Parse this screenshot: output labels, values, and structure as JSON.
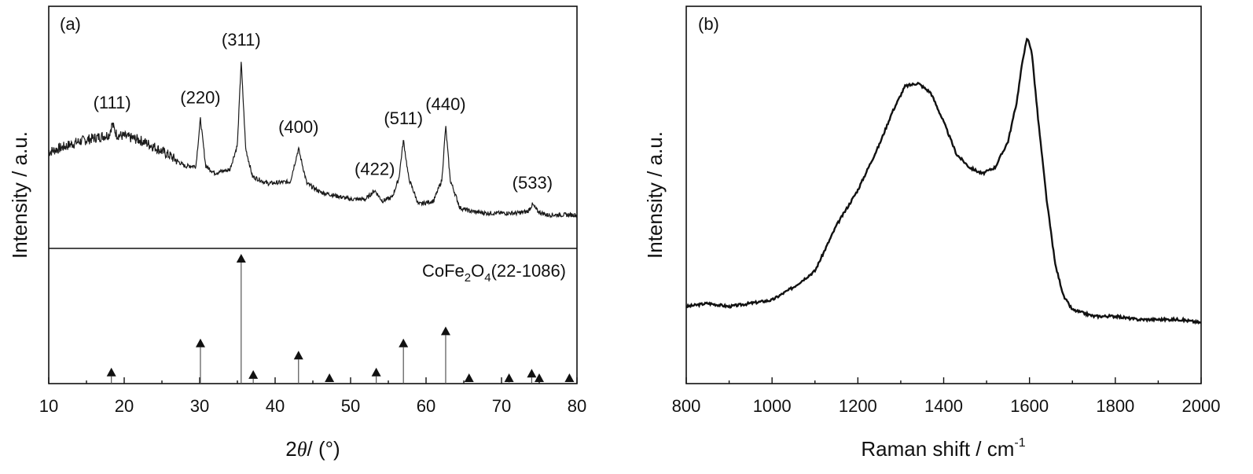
{
  "chart_data": [
    {
      "type": "line",
      "panel_label": "(a)",
      "xlabel_prefix": "2",
      "xlabel_symbol": "θ",
      "xlabel_suffix": "/ (°)",
      "ylabel": "Intensity / a.u.",
      "xlim": [
        10,
        80
      ],
      "xticks": [
        10,
        20,
        30,
        40,
        50,
        60,
        70,
        80
      ],
      "grid": false,
      "series": [
        {
          "x": [
            10,
            12,
            14,
            16,
            18,
            18.4,
            19,
            20,
            22,
            24,
            26,
            28,
            29.5,
            30.1,
            30.8,
            32,
            34,
            35.0,
            35.5,
            36.1,
            37,
            39,
            42,
            43.1,
            44.2,
            46,
            48,
            50,
            52,
            53.2,
            54.2,
            55.5,
            56.4,
            57.0,
            57.7,
            59,
            61,
            62.1,
            62.6,
            63.2,
            64.5,
            66,
            68,
            70,
            72,
            73.5,
            74.1,
            74.8,
            76,
            78,
            80
          ],
          "y": [
            0.48,
            0.51,
            0.54,
            0.56,
            0.58,
            0.64,
            0.58,
            0.57,
            0.55,
            0.51,
            0.46,
            0.4,
            0.4,
            0.67,
            0.4,
            0.36,
            0.38,
            0.52,
            1.0,
            0.5,
            0.34,
            0.3,
            0.31,
            0.5,
            0.3,
            0.25,
            0.23,
            0.21,
            0.21,
            0.26,
            0.2,
            0.22,
            0.33,
            0.55,
            0.33,
            0.18,
            0.2,
            0.32,
            0.63,
            0.32,
            0.16,
            0.14,
            0.13,
            0.13,
            0.13,
            0.14,
            0.18,
            0.14,
            0.12,
            0.12,
            0.12
          ]
        }
      ],
      "peak_labels": [
        {
          "text": "(111)",
          "x": 18.4
        },
        {
          "text": "(220)",
          "x": 30.1
        },
        {
          "text": "(311)",
          "x": 35.5
        },
        {
          "text": "(400)",
          "x": 43.1
        },
        {
          "text": "(422)",
          "x": 53.2
        },
        {
          "text": "(511)",
          "x": 57.0
        },
        {
          "text": "(440)",
          "x": 62.6
        },
        {
          "text": "(533)",
          "x": 74.1
        }
      ],
      "reference": {
        "label_main": "CoFe",
        "label_sub1": "2",
        "label_mid": "O",
        "label_sub2": "4",
        "label_tail": "(22-1086)",
        "peaks": [
          {
            "x": 18.3,
            "y": 0.06
          },
          {
            "x": 30.1,
            "y": 0.3
          },
          {
            "x": 35.5,
            "y": 1.0
          },
          {
            "x": 37.1,
            "y": 0.04
          },
          {
            "x": 43.1,
            "y": 0.2
          },
          {
            "x": 47.2,
            "y": 0.0
          },
          {
            "x": 53.4,
            "y": 0.06
          },
          {
            "x": 57.0,
            "y": 0.3
          },
          {
            "x": 62.6,
            "y": 0.4
          },
          {
            "x": 65.7,
            "y": 0.0
          },
          {
            "x": 71.0,
            "y": 0.01
          },
          {
            "x": 74.0,
            "y": 0.05
          },
          {
            "x": 75.0,
            "y": 0.0
          },
          {
            "x": 79.0,
            "y": 0.0
          }
        ]
      }
    },
    {
      "type": "line",
      "panel_label": "(b)",
      "xlabel": "Raman shift / cm",
      "xlabel_sup": "-1",
      "ylabel": "Intensity / a.u.",
      "xlim": [
        800,
        2000
      ],
      "xticks": [
        800,
        1000,
        1200,
        1400,
        1600,
        1800,
        2000
      ],
      "grid": false,
      "series": [
        {
          "x": [
            800,
            850,
            900,
            950,
            1000,
            1050,
            1100,
            1150,
            1200,
            1250,
            1280,
            1310,
            1340,
            1370,
            1400,
            1430,
            1460,
            1490,
            1520,
            1550,
            1570,
            1585,
            1595,
            1605,
            1620,
            1640,
            1660,
            1680,
            1700,
            1750,
            1800,
            1850,
            1900,
            1950,
            2000
          ],
          "y": [
            0.17,
            0.18,
            0.17,
            0.18,
            0.19,
            0.23,
            0.28,
            0.42,
            0.53,
            0.67,
            0.77,
            0.85,
            0.86,
            0.83,
            0.74,
            0.64,
            0.6,
            0.58,
            0.6,
            0.68,
            0.8,
            0.94,
            1.0,
            0.96,
            0.75,
            0.5,
            0.3,
            0.2,
            0.16,
            0.14,
            0.14,
            0.13,
            0.13,
            0.13,
            0.12
          ]
        }
      ]
    }
  ]
}
